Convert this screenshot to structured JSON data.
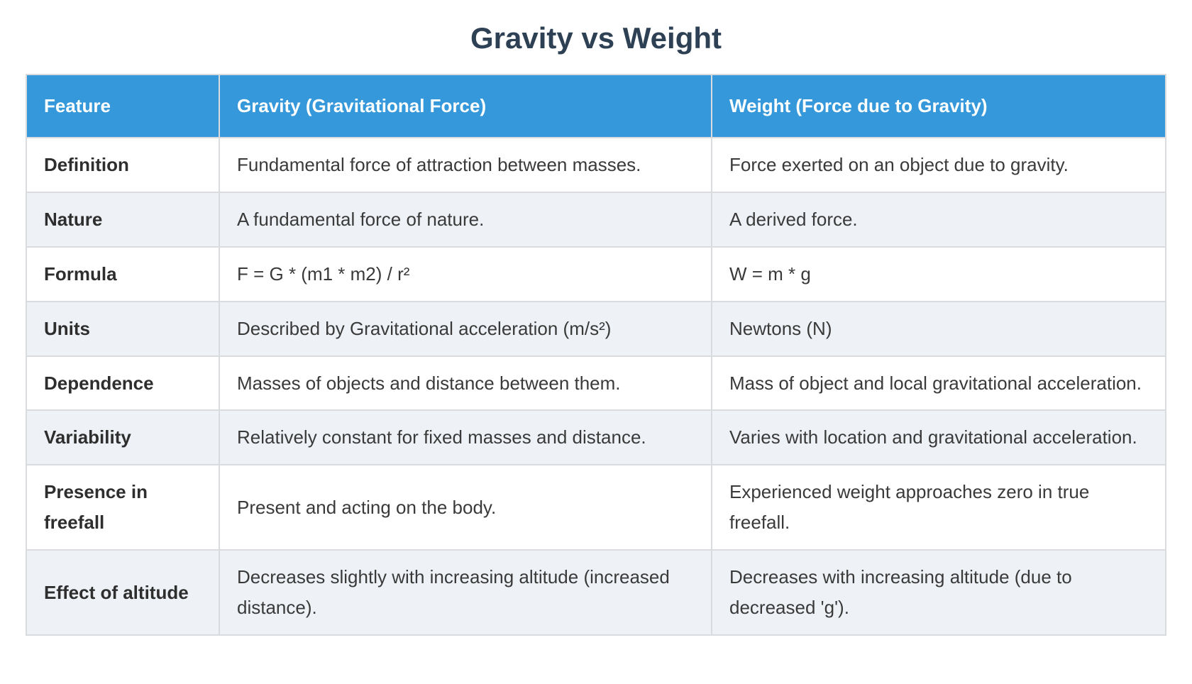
{
  "page": {
    "title": "Gravity vs Weight"
  },
  "colors": {
    "title": "#2e4053",
    "header_bg": "#3598da",
    "header_text": "#ffffff",
    "row_bg": "#ffffff",
    "row_alt_bg": "#eef1f6",
    "border": "#d9dbde",
    "cell_text": "#3a3a3a",
    "label_text": "#2e2e2e",
    "page_bg": "#ffffff"
  },
  "table": {
    "columns": [
      "Feature",
      "Gravity (Gravitational Force)",
      "Weight (Force due to Gravity)"
    ],
    "rows": [
      {
        "feature": "Definition",
        "gravity": "Fundamental force of attraction between masses.",
        "weight": "Force exerted on an object due to gravity."
      },
      {
        "feature": "Nature",
        "gravity": "A fundamental force of nature.",
        "weight": "A derived force."
      },
      {
        "feature": "Formula",
        "gravity": "F = G * (m1 * m2) / r²",
        "weight": "W = m * g"
      },
      {
        "feature": "Units",
        "gravity": "Described by Gravitational acceleration (m/s²)",
        "weight": "Newtons (N)"
      },
      {
        "feature": "Dependence",
        "gravity": "Masses of objects and distance between them.",
        "weight": "Mass of object and local gravitational acceleration."
      },
      {
        "feature": "Variability",
        "gravity": "Relatively constant for fixed masses and distance.",
        "weight": "Varies with location and gravitational acceleration."
      },
      {
        "feature": "Presence in freefall",
        "gravity": "Present and acting on the body.",
        "weight": "Experienced weight approaches zero in true freefall."
      },
      {
        "feature": "Effect of altitude",
        "gravity": "Decreases slightly with increasing altitude (increased distance).",
        "weight": "Decreases with increasing altitude (due to decreased 'g')."
      }
    ]
  }
}
